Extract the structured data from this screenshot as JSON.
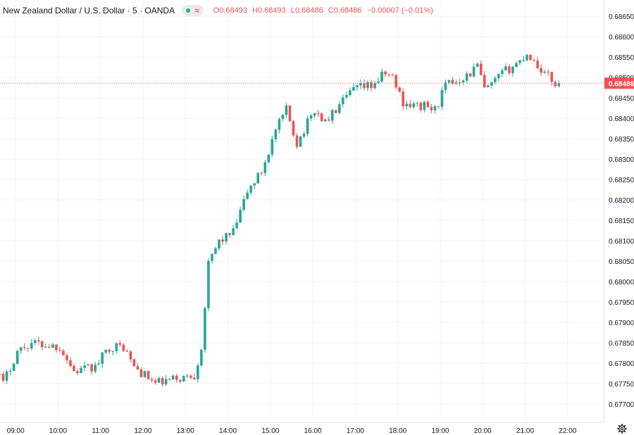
{
  "legend": {
    "title": "New Zealand Dollar / U.S. Dollar · 5 · OANDA",
    "status_icon": "green-dot",
    "wave_icon": "approx-wave",
    "open": "O0.68493",
    "high": "H0.68493",
    "low": "L0.68486",
    "close": "C0.68486",
    "change": "−0.00007 (−0.01%)"
  },
  "settings_icon": "gear-icon",
  "colors": {
    "up": "#26a69a",
    "down": "#ef5350",
    "grid": "#f0f3fa",
    "axis_text": "#131722",
    "price_line": "#ef5350"
  },
  "chart_data": {
    "type": "candlestick",
    "interval": "5m",
    "y_axis": {
      "ticks": [
        0.677,
        0.6775,
        0.678,
        0.6785,
        0.679,
        0.6795,
        0.68,
        0.6805,
        0.681,
        0.6815,
        0.682,
        0.6825,
        0.683,
        0.6835,
        0.684,
        0.6845,
        0.685,
        0.6855,
        0.686,
        0.6865
      ],
      "tick_labels": [
        "0.67700",
        "0.67750",
        "0.67800",
        "0.67850",
        "0.67900",
        "0.67950",
        "0.68000",
        "0.68050",
        "0.68100",
        "0.68150",
        "0.68200",
        "0.68250",
        "0.68300",
        "0.68350",
        "0.68400",
        "0.68450",
        "0.68500",
        "0.68550",
        "0.68600",
        "0.68650"
      ],
      "range": [
        0.67655,
        0.6869
      ],
      "position": "right"
    },
    "x_axis": {
      "ticks": [
        "09:00",
        "10:00",
        "11:00",
        "12:00",
        "13:00",
        "14:00",
        "15:00",
        "16:00",
        "17:00",
        "18:00",
        "19:00",
        "20:00",
        "21:00",
        "22:00"
      ],
      "start": "08:30",
      "end": "22:40"
    },
    "grid": true,
    "last_price": 0.68486,
    "last_price_label": "0.68486",
    "anchors": [
      [
        "08:30",
        0.678
      ],
      [
        "08:45",
        0.6775
      ],
      [
        "09:05",
        0.6783
      ],
      [
        "09:25",
        0.6785
      ],
      [
        "10:05",
        0.6784
      ],
      [
        "10:25",
        0.6778
      ],
      [
        "10:55",
        0.6779
      ],
      [
        "11:15",
        0.6784
      ],
      [
        "11:35",
        0.6784
      ],
      [
        "11:50",
        0.6779
      ],
      [
        "12:05",
        0.6777
      ],
      [
        "12:20",
        0.6775
      ],
      [
        "12:45",
        0.6776
      ],
      [
        "13:15",
        0.6777
      ],
      [
        "13:25",
        0.6784
      ],
      [
        "13:35",
        0.6804
      ],
      [
        "13:50",
        0.681
      ],
      [
        "14:10",
        0.6812
      ],
      [
        "14:30",
        0.6822
      ],
      [
        "14:50",
        0.6827
      ],
      [
        "15:10",
        0.6837
      ],
      [
        "15:25",
        0.6842
      ],
      [
        "15:40",
        0.6834
      ],
      [
        "16:05",
        0.6842
      ],
      [
        "16:20",
        0.6839
      ],
      [
        "16:35",
        0.6842
      ],
      [
        "17:00",
        0.6847
      ],
      [
        "17:25",
        0.6848
      ],
      [
        "17:45",
        0.6851
      ],
      [
        "17:55",
        0.685
      ],
      [
        "18:10",
        0.6844
      ],
      [
        "18:25",
        0.6843
      ],
      [
        "18:40",
        0.6843
      ],
      [
        "18:55",
        0.6842
      ],
      [
        "19:10",
        0.6848
      ],
      [
        "19:45",
        0.6851
      ],
      [
        "19:55",
        0.6853
      ],
      [
        "20:05",
        0.6847
      ],
      [
        "20:15",
        0.6848
      ],
      [
        "20:30",
        0.6851
      ],
      [
        "20:55",
        0.6854
      ],
      [
        "21:05",
        0.6856
      ],
      [
        "21:20",
        0.6853
      ],
      [
        "21:30",
        0.6851
      ],
      [
        "21:45",
        0.68486
      ]
    ]
  }
}
